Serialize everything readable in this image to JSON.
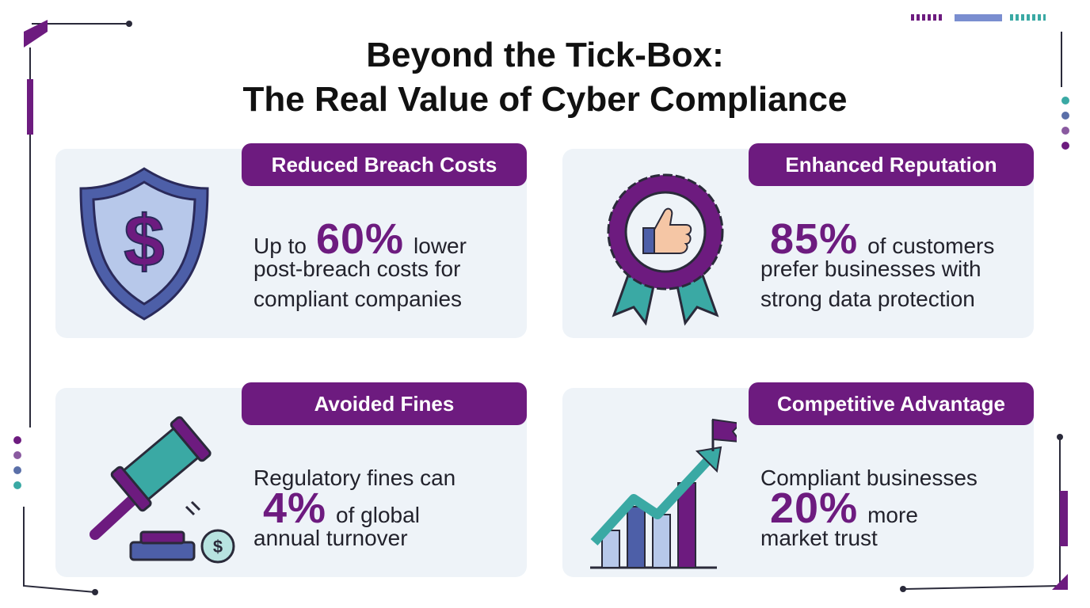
{
  "header": {
    "title_lines": [
      "Beyond the Tick-Box:",
      "The Real Value of Cyber Compliance"
    ]
  },
  "cards": [
    {
      "label": "Reduced Breach Costs",
      "lines": [
        {
          "pre": "Up to",
          "stat": "60%",
          "post": "lower"
        },
        {
          "text": "post-breach costs for"
        },
        {
          "text": "compliant companies"
        }
      ]
    },
    {
      "label": "Enhanced Reputation",
      "lines": [
        {
          "stat": "85%",
          "post": "of customers"
        },
        {
          "text": "prefer businesses with"
        },
        {
          "text": "strong data protection"
        }
      ]
    },
    {
      "label": "Avoided Fines",
      "lines": [
        {
          "text": "Regulatory fines can"
        },
        {
          "stat": "4%",
          "post": "of global"
        },
        {
          "text": "annual turnover"
        }
      ]
    },
    {
      "label": "Competitive Advantage",
      "lines": [
        {
          "text": "Compliant businesses"
        },
        {
          "stat": "20%",
          "post": "more"
        },
        {
          "text": "market trust"
        }
      ]
    }
  ]
}
